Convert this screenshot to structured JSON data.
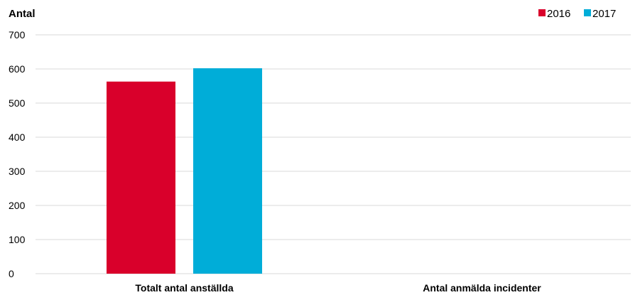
{
  "chart_data": {
    "type": "bar",
    "title": "",
    "xlabel": "",
    "ylabel": "Antal",
    "ylim": [
      0,
      700
    ],
    "yticks": [
      0,
      100,
      200,
      300,
      400,
      500,
      600,
      700
    ],
    "categories": [
      "Totalt antal anställda",
      "Antal anmälda incidenter"
    ],
    "series": [
      {
        "name": "2016",
        "color": "#d9002b",
        "values": [
          563,
          0
        ]
      },
      {
        "name": "2017",
        "color": "#00add8",
        "values": [
          602,
          0
        ]
      }
    ],
    "grid": true,
    "legend_position": "top-right"
  }
}
